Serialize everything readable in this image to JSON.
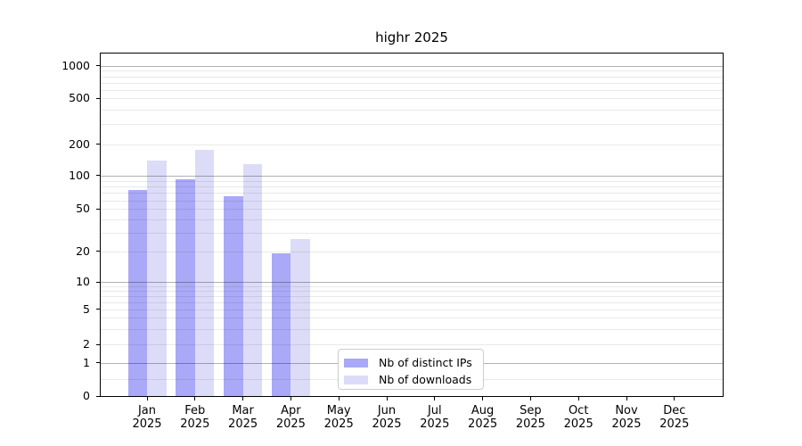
{
  "chart_data": {
    "type": "bar",
    "title": "highr 2025",
    "categories": [
      {
        "month": "Jan",
        "year": "2025"
      },
      {
        "month": "Feb",
        "year": "2025"
      },
      {
        "month": "Mar",
        "year": "2025"
      },
      {
        "month": "Apr",
        "year": "2025"
      },
      {
        "month": "May",
        "year": "2025"
      },
      {
        "month": "Jun",
        "year": "2025"
      },
      {
        "month": "Jul",
        "year": "2025"
      },
      {
        "month": "Aug",
        "year": "2025"
      },
      {
        "month": "Sep",
        "year": "2025"
      },
      {
        "month": "Oct",
        "year": "2025"
      },
      {
        "month": "Nov",
        "year": "2025"
      },
      {
        "month": "Dec",
        "year": "2025"
      }
    ],
    "series": [
      {
        "name": "Nb of distinct IPs",
        "color": "#a9a9f7",
        "values": [
          74,
          93,
          65,
          19,
          null,
          null,
          null,
          null,
          null,
          null,
          null,
          null
        ]
      },
      {
        "name": "Nb of downloads",
        "color": "#dcdcf8",
        "values": [
          140,
          176,
          130,
          26,
          null,
          null,
          null,
          null,
          null,
          null,
          null,
          null
        ]
      }
    ],
    "yaxis": {
      "scale": "symlog-like",
      "ylim": [
        0,
        1200
      ],
      "ticks": [
        {
          "value": 0,
          "label": "0",
          "pos": 0.0
        },
        {
          "value": 1,
          "label": "1",
          "pos": 0.0968
        },
        {
          "value": 2,
          "label": "2",
          "pos": 0.15
        },
        {
          "value": 5,
          "label": "5",
          "pos": 0.2538
        },
        {
          "value": 10,
          "label": "10",
          "pos": 0.3322
        },
        {
          "value": 20,
          "label": "20",
          "pos": 0.4228
        },
        {
          "value": 50,
          "label": "50",
          "pos": 0.5458
        },
        {
          "value": 100,
          "label": "100",
          "pos": 0.6436
        },
        {
          "value": 200,
          "label": "200",
          "pos": 0.7352
        },
        {
          "value": 500,
          "label": "500",
          "pos": 0.8692
        },
        {
          "value": 1000,
          "label": "1000",
          "pos": 0.9637
        }
      ],
      "major_grid_values": [
        1,
        10,
        100,
        1000
      ],
      "minor_grid_values": [
        0.5,
        2,
        3,
        4,
        5,
        6,
        7,
        8,
        9,
        20,
        30,
        40,
        50,
        60,
        70,
        80,
        90,
        200,
        300,
        400,
        500,
        600,
        700,
        800,
        900
      ]
    },
    "legend": {
      "position": "lower center",
      "labels": [
        "Nb of distinct IPs",
        "Nb of downloads"
      ]
    },
    "grid": true,
    "colors": {
      "bar_distinct_ips": "#a9a9f7",
      "bar_downloads": "#dcdcf8",
      "major_grid": "#b0b0b0",
      "minor_grid": "#e9e9e9",
      "spine": "#000000",
      "legend_border": "#cccccc",
      "background": "#ffffff"
    }
  }
}
